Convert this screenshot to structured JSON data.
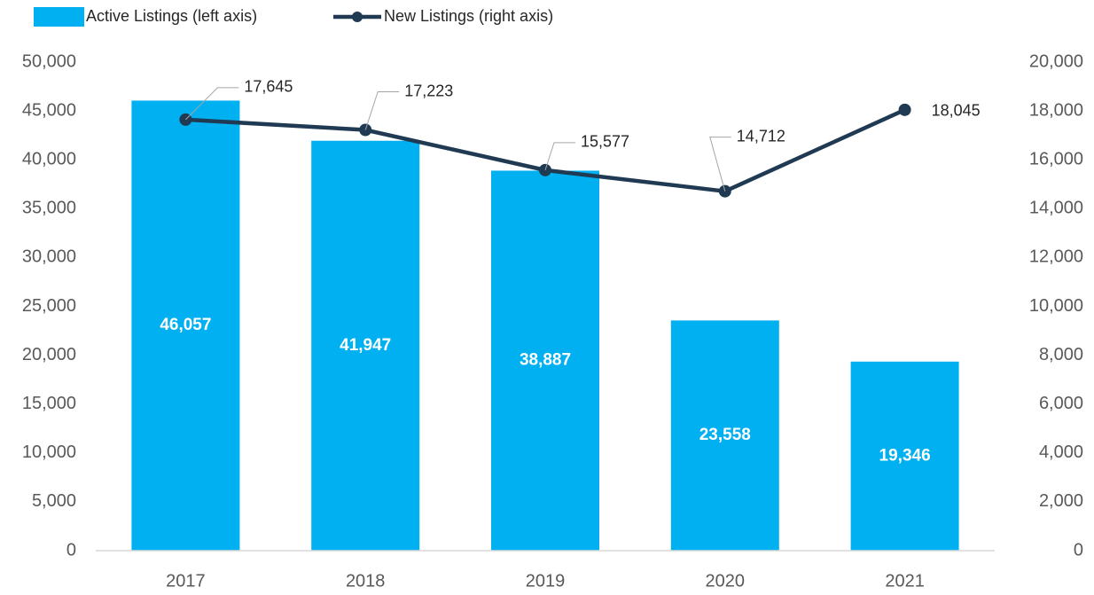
{
  "chart_data": {
    "type": "bar",
    "categories": [
      "2017",
      "2018",
      "2019",
      "2020",
      "2021"
    ],
    "series": [
      {
        "name": "Active Listings (left axis)",
        "type": "bar",
        "color": "#00b0f0",
        "values": [
          46057,
          41947,
          38887,
          23558,
          19346
        ],
        "value_labels": [
          "46,057",
          "41,947",
          "38,887",
          "23,558",
          "19,346"
        ]
      },
      {
        "name": "New Listings (right axis)",
        "type": "line",
        "axis": "y2",
        "color": "#1f3a52",
        "values": [
          17645,
          17223,
          15577,
          14712,
          18045
        ],
        "value_labels": [
          "17,645",
          "17,223",
          "15,577",
          "14,712",
          "18,045"
        ]
      }
    ],
    "ylim": [
      0,
      50000
    ],
    "yticks": [
      0,
      {
        "value": 5000,
        "label": "5,000"
      },
      {
        "value": 10000,
        "label": "10,000"
      },
      {
        "value": 15000,
        "label": "15,000"
      },
      {
        "value": 20000,
        "label": "20,000"
      },
      {
        "value": 25000,
        "label": "25,000"
      },
      {
        "value": 30000,
        "label": "30,000"
      },
      {
        "value": 35000,
        "label": "35,000"
      },
      {
        "value": 40000,
        "label": "40,000"
      },
      {
        "value": 45000,
        "label": "45,000"
      },
      {
        "value": 50000,
        "label": "50,000"
      }
    ],
    "y2lim": [
      0,
      20000
    ],
    "y2ticks": [
      0,
      {
        "value": 2000,
        "label": "2,000"
      },
      {
        "value": 4000,
        "label": "4,000"
      },
      {
        "value": 6000,
        "label": "6,000"
      },
      {
        "value": 8000,
        "label": "8,000"
      },
      {
        "value": 10000,
        "label": "10,000"
      },
      {
        "value": 12000,
        "label": "12,000"
      },
      {
        "value": 14000,
        "label": "14,000"
      },
      {
        "value": 16000,
        "label": "16,000"
      },
      {
        "value": 18000,
        "label": "18,000"
      },
      {
        "value": 20000,
        "label": "20,000"
      }
    ],
    "legend": "top-left",
    "grid": false
  }
}
